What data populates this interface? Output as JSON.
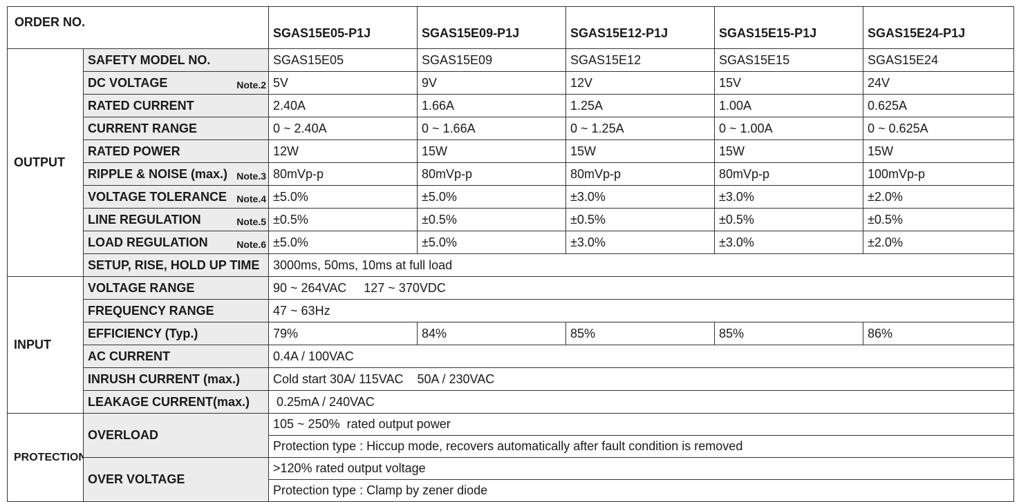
{
  "header": {
    "order_label": "ORDER NO.",
    "models": [
      "SGAS15E05-P1J",
      "SGAS15E09-P1J",
      "SGAS15E12-P1J",
      "SGAS15E15-P1J",
      "SGAS15E24-P1J"
    ]
  },
  "output": {
    "group": "OUTPUT",
    "rows": [
      {
        "label": "SAFETY MODEL NO.",
        "note": "",
        "values": [
          "SGAS15E05",
          "SGAS15E09",
          "SGAS15E12",
          "SGAS15E15",
          "SGAS15E24"
        ]
      },
      {
        "label": "DC VOLTAGE",
        "note": "Note.2",
        "values": [
          "5V",
          "9V",
          "12V",
          "15V",
          "24V"
        ]
      },
      {
        "label": "RATED CURRENT",
        "note": "",
        "values": [
          "2.40A",
          "1.66A",
          "1.25A",
          "1.00A",
          "0.625A"
        ]
      },
      {
        "label": "CURRENT RANGE",
        "note": "",
        "values": [
          "0 ~ 2.40A",
          "0 ~ 1.66A",
          "0 ~ 1.25A",
          "0 ~ 1.00A",
          "0 ~ 0.625A"
        ]
      },
      {
        "label": "RATED POWER",
        "note": "",
        "values": [
          "12W",
          "15W",
          "15W",
          "15W",
          "15W"
        ]
      },
      {
        "label": "RIPPLE & NOISE (max.)",
        "note": "Note.3",
        "values": [
          "80mVp-p",
          "80mVp-p",
          "80mVp-p",
          "80mVp-p",
          "100mVp-p"
        ]
      },
      {
        "label": "VOLTAGE TOLERANCE",
        "note": "Note.4",
        "values": [
          "±5.0%",
          "±5.0%",
          "±3.0%",
          "±3.0%",
          "±2.0%"
        ]
      },
      {
        "label": "LINE REGULATION",
        "note": "Note.5",
        "values": [
          "±0.5%",
          "±0.5%",
          "±0.5%",
          "±0.5%",
          "±0.5%"
        ]
      },
      {
        "label": "LOAD REGULATION",
        "note": "Note.6",
        "values": [
          "±5.0%",
          "±5.0%",
          "±3.0%",
          "±3.0%",
          "±2.0%"
        ]
      }
    ],
    "setup": {
      "label": "SETUP, RISE, HOLD UP TIME",
      "value": "3000ms, 50ms, 10ms  at full load"
    }
  },
  "input": {
    "group": "INPUT",
    "voltage_range": {
      "label": "VOLTAGE RANGE",
      "value": "90 ~ 264VAC     127 ~ 370VDC"
    },
    "frequency_range": {
      "label": "FREQUENCY RANGE",
      "value": "47 ~ 63Hz"
    },
    "efficiency": {
      "label": "EFFICIENCY (Typ.)",
      "values": [
        "79%",
        "84%",
        "85%",
        "85%",
        "86%"
      ]
    },
    "ac_current": {
      "label": "AC CURRENT",
      "value": "0.4A / 100VAC"
    },
    "inrush_current": {
      "label": "INRUSH CURRENT (max.)",
      "value": "Cold start 30A/ 115VAC    50A / 230VAC"
    },
    "leakage_current": {
      "label": "LEAKAGE CURRENT(max.)",
      "value": " 0.25mA / 240VAC"
    }
  },
  "protection": {
    "group": "PROTECTION",
    "overload": {
      "label": "OVERLOAD",
      "lines": [
        "105 ~ 250%  rated output power",
        "Protection type : Hiccup mode, recovers automatically after fault condition is removed"
      ]
    },
    "over_voltage": {
      "label": "OVER VOLTAGE",
      "lines": [
        ">120% rated output voltage",
        "Protection type : Clamp by zener diode"
      ]
    }
  }
}
